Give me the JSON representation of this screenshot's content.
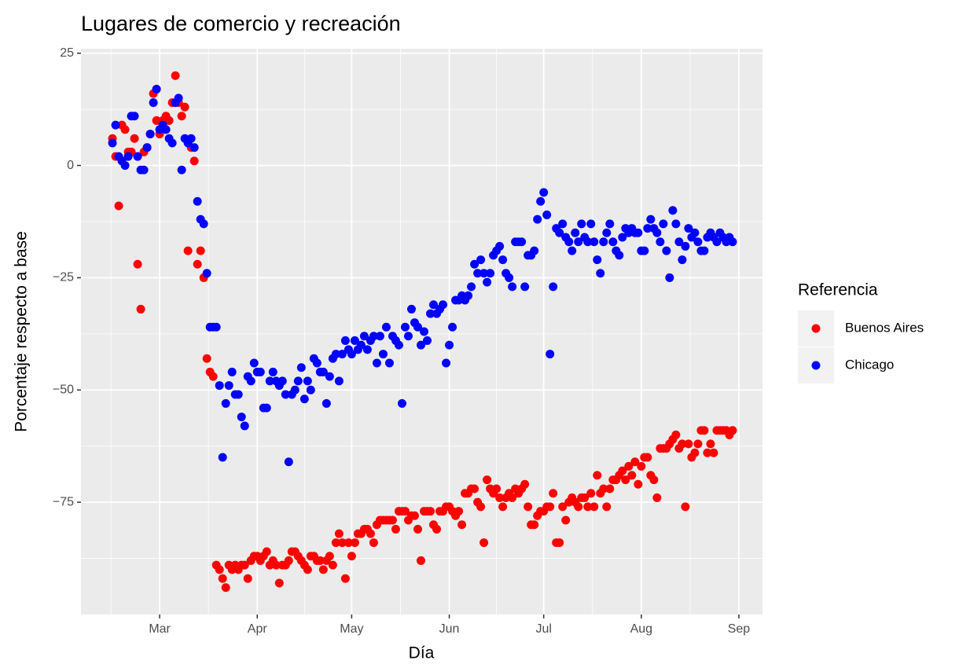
{
  "chart_data": {
    "type": "scatter",
    "title": "Lugares de comercio y recreación",
    "x_label": "Día",
    "y_label": "Porcentaje respecto a base",
    "legend_title": "Referencia",
    "legend": "right",
    "grid": true,
    "xlim": [
      36,
      252.5
    ],
    "ylim": [
      -100,
      26
    ],
    "xticks": [
      {
        "value": 61,
        "label": "Mar"
      },
      {
        "value": 92,
        "label": "Apr"
      },
      {
        "value": 122,
        "label": "May"
      },
      {
        "value": 153,
        "label": "Jun"
      },
      {
        "value": 183,
        "label": "Jul"
      },
      {
        "value": 214,
        "label": "Aug"
      },
      {
        "value": 245,
        "label": "Sep"
      }
    ],
    "yticks": [
      25,
      0,
      {
        "value": -25,
        "label": "−25"
      },
      {
        "value": -50,
        "label": "−50"
      },
      {
        "value": -75,
        "label": "−75"
      }
    ],
    "x": [
      46,
      47,
      48,
      49,
      50,
      51,
      52,
      53,
      54,
      55,
      56,
      57,
      58,
      59,
      60,
      61,
      62,
      63,
      64,
      65,
      66,
      67,
      68,
      69,
      70,
      71,
      72,
      73,
      74,
      75,
      76,
      77,
      78,
      79,
      80,
      81,
      82,
      83,
      84,
      85,
      86,
      87,
      88,
      89,
      90,
      91,
      92,
      93,
      94,
      95,
      96,
      97,
      98,
      99,
      100,
      101,
      102,
      103,
      104,
      105,
      106,
      107,
      108,
      109,
      110,
      111,
      112,
      113,
      114,
      115,
      116,
      117,
      118,
      119,
      120,
      121,
      122,
      123,
      124,
      125,
      126,
      127,
      128,
      129,
      130,
      131,
      132,
      133,
      134,
      135,
      136,
      137,
      138,
      139,
      140,
      141,
      142,
      143,
      144,
      145,
      146,
      147,
      148,
      149,
      150,
      151,
      152,
      153,
      154,
      155,
      156,
      157,
      158,
      159,
      160,
      161,
      162,
      163,
      164,
      165,
      166,
      167,
      168,
      169,
      170,
      171,
      172,
      173,
      174,
      175,
      176,
      177,
      178,
      179,
      180,
      181,
      182,
      183,
      184,
      185,
      186,
      187,
      188,
      189,
      190,
      191,
      192,
      193,
      194,
      195,
      196,
      197,
      198,
      199,
      200,
      201,
      202,
      203,
      204,
      205,
      206,
      207,
      208,
      209,
      210,
      211,
      212,
      213,
      214,
      215,
      216,
      217,
      218,
      219,
      220,
      221,
      222,
      223,
      224,
      225,
      226,
      227,
      228,
      229,
      230,
      231,
      232,
      233,
      234,
      235,
      236,
      237,
      238,
      239,
      240,
      241,
      242,
      243
    ],
    "series": [
      {
        "name": "Buenos Aires",
        "color": "#ff0000",
        "values": [
          6,
          2,
          -9,
          9,
          8,
          3,
          3,
          6,
          -22,
          -32,
          3,
          4,
          7,
          16,
          10,
          7,
          10,
          11,
          10,
          14,
          20,
          14,
          11,
          13,
          -19,
          4,
          1,
          -22,
          -19,
          -25,
          -43,
          -46,
          -47,
          -89,
          -90,
          -92,
          -94,
          -89,
          -90,
          -89,
          -90,
          -89,
          -89,
          -92,
          -88,
          -87,
          -87,
          -88,
          -87,
          -86,
          -89,
          -88,
          -89,
          -93,
          -89,
          -89,
          -88,
          -86,
          -86,
          -87,
          -88,
          -89,
          -90,
          -87,
          -87,
          -88,
          -88,
          -90,
          -88,
          -87,
          -89,
          -84,
          -82,
          -84,
          -92,
          -84,
          -87,
          -84,
          -82,
          -82,
          -81,
          -81,
          -82,
          -84,
          -80,
          -79,
          -79,
          -79,
          -79,
          -79,
          -81,
          -77,
          -77,
          -77,
          -79,
          -78,
          -78,
          -81,
          -88,
          -77,
          -77,
          -77,
          -80,
          -81,
          -77,
          -77,
          -76,
          -76,
          -77,
          -78,
          -77,
          -80,
          -73,
          -73,
          -72,
          -72,
          -75,
          -76,
          -84,
          -70,
          -72,
          -73,
          -72,
          -74,
          -76,
          -74,
          -73,
          -74,
          -72,
          -73,
          -72,
          -71,
          -76,
          -80,
          -80,
          -78,
          -77,
          -77,
          -76,
          -76,
          -73,
          -84,
          -84,
          -76,
          -79,
          -75,
          -74,
          -75,
          -76,
          -74,
          -74,
          -76,
          -73,
          -76,
          -69,
          -73,
          -72,
          -76,
          -72,
          -70,
          -70,
          -69,
          -68,
          -70,
          -67,
          -69,
          -66,
          -71,
          -67,
          -65,
          -65,
          -69,
          -70,
          -74,
          -63,
          -63,
          -63,
          -62,
          -61,
          -60,
          -63,
          -62,
          -76,
          -62,
          -65,
          -64,
          -62,
          -59,
          -59,
          -64,
          -62,
          -64,
          -59,
          -59,
          -59,
          -59,
          -60,
          -59
        ]
      },
      {
        "name": "Chicago",
        "color": "#0000ff",
        "values": [
          5,
          9,
          2,
          1,
          0,
          2,
          11,
          11,
          2,
          -1,
          -1,
          4,
          7,
          14,
          17,
          8,
          9,
          8,
          6,
          5,
          14,
          15,
          -1,
          6,
          5,
          6,
          4,
          -8,
          -12,
          -13,
          -24,
          -36,
          -36,
          -36,
          -49,
          -65,
          -53,
          -49,
          -46,
          -51,
          -51,
          -56,
          -58,
          -47,
          -48,
          -44,
          -46,
          -46,
          -54,
          -54,
          -48,
          -46,
          -48,
          -49,
          -48,
          -51,
          -66,
          -51,
          -50,
          -48,
          -45,
          -52,
          -48,
          -50,
          -43,
          -44,
          -46,
          -46,
          -53,
          -47,
          -43,
          -42,
          -48,
          -42,
          -39,
          -41,
          -42,
          -39,
          -41,
          -40,
          -38,
          -41,
          -39,
          -38,
          -44,
          -38,
          -42,
          -36,
          -44,
          -38,
          -39,
          -40,
          -53,
          -36,
          -38,
          -32,
          -35,
          -36,
          -40,
          -37,
          -39,
          -33,
          -31,
          -33,
          -32,
          -31,
          -44,
          -40,
          -36,
          -30,
          -30,
          -29,
          -30,
          -29,
          -27,
          -22,
          -24,
          -21,
          -24,
          -26,
          -24,
          -20,
          -19,
          -18,
          -21,
          -24,
          -25,
          -27,
          -17,
          -17,
          -17,
          -27,
          -20,
          -20,
          -19,
          -12,
          -8,
          -6,
          -11,
          -42,
          -27,
          -14,
          -15,
          -13,
          -16,
          -17,
          -19,
          -15,
          -17,
          -13,
          -16,
          -17,
          -13,
          -17,
          -21,
          -24,
          -17,
          -15,
          -13,
          -17,
          -19,
          -20,
          -16,
          -14,
          -15,
          -14,
          -15,
          -15,
          -19,
          -19,
          -14,
          -12,
          -14,
          -15,
          -17,
          -13,
          -19,
          -25,
          -10,
          -13,
          -17,
          -21,
          -18,
          -14,
          -16,
          -15,
          -17,
          -19,
          -19,
          -16,
          -15,
          -16,
          -17,
          -15,
          -16,
          -17,
          -16,
          -17
        ]
      }
    ]
  }
}
